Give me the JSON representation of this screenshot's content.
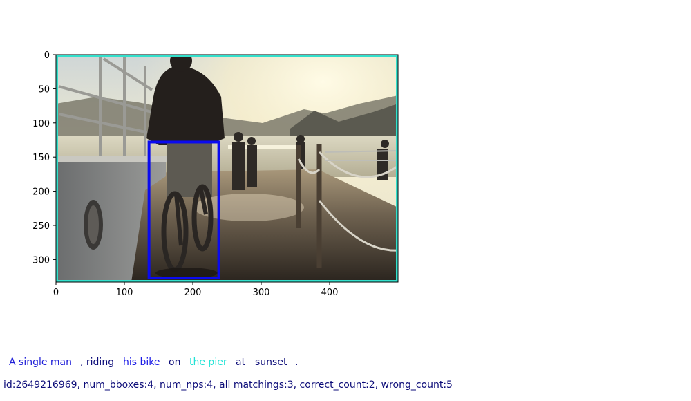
{
  "plot": {
    "x_ticks": [
      "0",
      "100",
      "200",
      "300",
      "400"
    ],
    "y_ticks": [
      "0",
      "50",
      "100",
      "150",
      "200",
      "250",
      "300"
    ],
    "x_tick_values": [
      0,
      100,
      200,
      300,
      400
    ],
    "y_tick_values": [
      0,
      50,
      100,
      150,
      200,
      250,
      300
    ],
    "image_extent": {
      "width": 500,
      "height": 333
    },
    "image_border_color": "#33e0cc",
    "bbox_color": "#0a0af0",
    "bbox_data": {
      "x0": 136,
      "y0": 128,
      "x1": 238,
      "y1": 327
    }
  },
  "caption": {
    "tokens": [
      {
        "text": "A single man",
        "color": "#2020d8"
      },
      {
        "text": ", riding",
        "color": "#0b0b78"
      },
      {
        "text": "his bike",
        "color": "#1a1ae6"
      },
      {
        "text": "on",
        "color": "#0b0b78"
      },
      {
        "text": "the pier",
        "color": "#22e3d6"
      },
      {
        "text": "at",
        "color": "#0b0b78"
      },
      {
        "text": "sunset",
        "color": "#0b0b78"
      },
      {
        "text": ".",
        "color": "#0b0b78"
      }
    ]
  },
  "stats": {
    "text": "id:2649216969, num_bboxes:4, num_nps:4, all matchings:3, correct_count:2, wrong_count:5"
  }
}
